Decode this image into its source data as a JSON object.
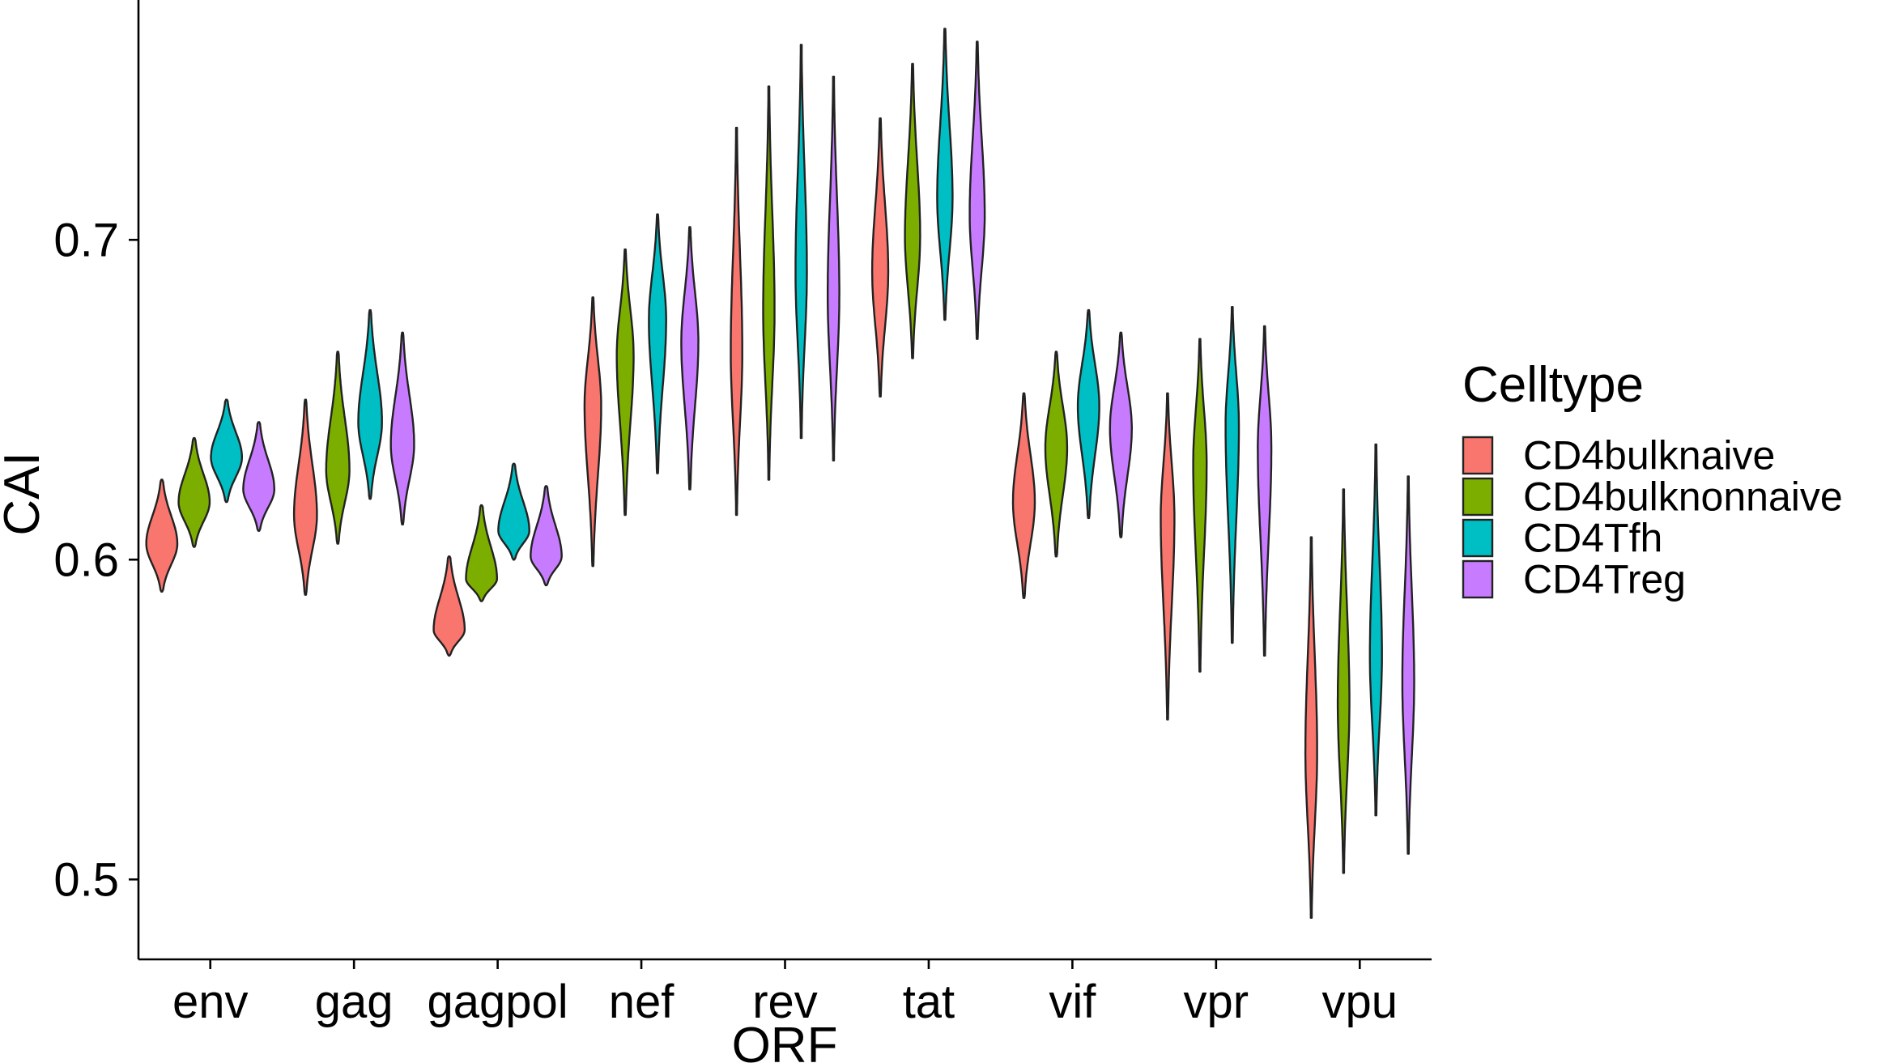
{
  "chart_data": {
    "type": "violin",
    "xlabel": "ORF",
    "ylabel": "CAI",
    "categories": [
      "env",
      "gag",
      "gagpol",
      "nef",
      "rev",
      "tat",
      "vif",
      "vpr",
      "vpu"
    ],
    "ylim": [
      0.475,
      0.775
    ],
    "yticks": [
      0.5,
      0.6,
      0.7
    ],
    "ytick_labels": [
      "0.5",
      "0.6",
      "0.7"
    ],
    "grid": false,
    "legend": {
      "title": "Celltype",
      "position": "right",
      "entries": [
        "CD4bulknaive",
        "CD4bulknonnaive",
        "CD4Tfh",
        "CD4Treg"
      ]
    },
    "series": [
      {
        "name": "CD4bulknaive",
        "color": "#F8766D",
        "ranges": [
          [
            0.59,
            0.625
          ],
          [
            0.589,
            0.65
          ],
          [
            0.57,
            0.601
          ],
          [
            0.598,
            0.682
          ],
          [
            0.614,
            0.735
          ],
          [
            0.651,
            0.738
          ],
          [
            0.588,
            0.652
          ],
          [
            0.55,
            0.652
          ],
          [
            0.488,
            0.607
          ]
        ],
        "medians": [
          0.605,
          0.614,
          0.578,
          0.648,
          0.665,
          0.69,
          0.618,
          0.613,
          0.54
        ]
      },
      {
        "name": "CD4bulknonnaive",
        "color": "#7CAE00",
        "ranges": [
          [
            0.604,
            0.638
          ],
          [
            0.605,
            0.665
          ],
          [
            0.587,
            0.617
          ],
          [
            0.614,
            0.697
          ],
          [
            0.625,
            0.748
          ],
          [
            0.663,
            0.755
          ],
          [
            0.601,
            0.665
          ],
          [
            0.565,
            0.669
          ],
          [
            0.502,
            0.622
          ]
        ],
        "medians": [
          0.618,
          0.628,
          0.594,
          0.664,
          0.678,
          0.701,
          0.635,
          0.63,
          0.555
        ]
      },
      {
        "name": "CD4Tfh",
        "color": "#00BFC4",
        "ranges": [
          [
            0.618,
            0.65
          ],
          [
            0.619,
            0.678
          ],
          [
            0.6,
            0.63
          ],
          [
            0.627,
            0.708
          ],
          [
            0.638,
            0.761
          ],
          [
            0.675,
            0.766
          ],
          [
            0.613,
            0.678
          ],
          [
            0.574,
            0.679
          ],
          [
            0.52,
            0.636
          ]
        ],
        "medians": [
          0.632,
          0.643,
          0.609,
          0.675,
          0.69,
          0.713,
          0.648,
          0.642,
          0.57
        ]
      },
      {
        "name": "CD4Treg",
        "color": "#C77CFF",
        "ranges": [
          [
            0.609,
            0.643
          ],
          [
            0.611,
            0.671
          ],
          [
            0.592,
            0.623
          ],
          [
            0.622,
            0.704
          ],
          [
            0.631,
            0.751
          ],
          [
            0.669,
            0.762
          ],
          [
            0.607,
            0.671
          ],
          [
            0.57,
            0.673
          ],
          [
            0.508,
            0.626
          ]
        ],
        "medians": [
          0.622,
          0.636,
          0.601,
          0.668,
          0.683,
          0.708,
          0.641,
          0.635,
          0.562
        ]
      }
    ]
  }
}
